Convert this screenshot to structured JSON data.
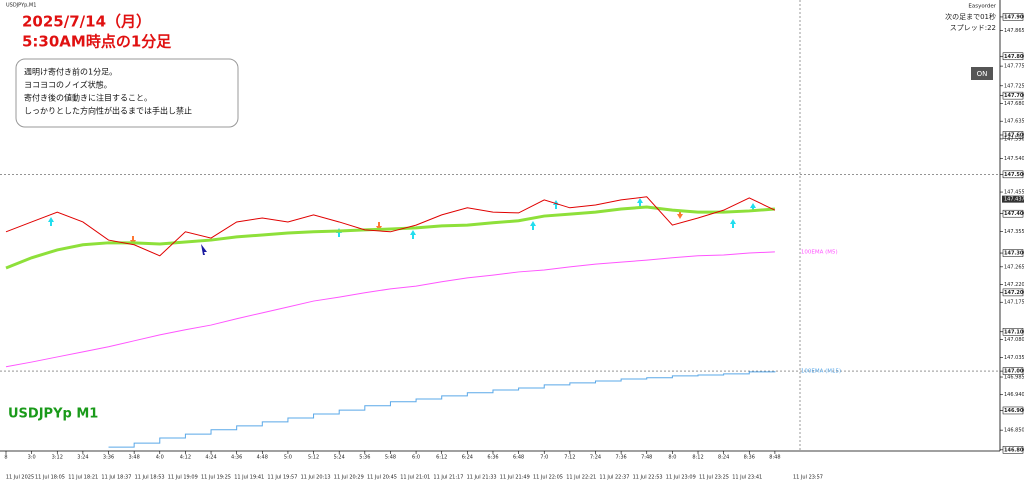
{
  "chart_data": {
    "type": "line",
    "symbol_header": "USDJPYp,M1",
    "title": "2025/7/14（月）",
    "subtitle": "5:30AM時点の1分足",
    "watermark": "USDJPYp M1",
    "note": [
      "週明け寄付き前の1分足。",
      "ヨコヨコのノイズ状態。",
      "寄付き後の値動きに注目すること。",
      "しっかりとした方向性が出るまでは手出し禁止"
    ],
    "panel": {
      "title": "Easyorder",
      "countdown": "次の足まで01秒",
      "spread": "スプレッド:22",
      "button": "ON"
    },
    "current_price": {
      "value": 147.437,
      "label": "147.437"
    },
    "categories": [
      "8",
      "3:0",
      "3:12",
      "3:24",
      "3:36",
      "3:48",
      "4:0",
      "4:12",
      "4:24",
      "4:36",
      "4:48",
      "5:0",
      "5:12",
      "5:24",
      "5:36",
      "5:48",
      "6:0",
      "6:12",
      "6:24",
      "6:36",
      "6:48",
      "7:0",
      "7:12",
      "7:24",
      "7:36",
      "7:48",
      "8:0",
      "8:12",
      "8:24",
      "8:36",
      "8:48"
    ],
    "date_labels": [
      "11 Jul 2025",
      "11 Jul 18:05",
      "11 Jul 18:21",
      "11 Jul 18:37",
      "11 Jul 18:53",
      "11 Jul 19:09",
      "11 Jul 19:25",
      "11 Jul 19:41",
      "11 Jul 19:57",
      "11 Jul 20:13",
      "11 Jul 20:29",
      "11 Jul 20:45",
      "11 Jul 21:01",
      "11 Jul 21:17",
      "11 Jul 21:33",
      "11 Jul 21:49",
      "11 Jul 22:05",
      "11 Jul 22:21",
      "11 Jul 22:37",
      "11 Jul 22:53",
      "11 Jul 23:09",
      "11 Jul 23:25",
      "11 Jul 23:41",
      "11 Jul 23:57"
    ],
    "series": [
      {
        "color": "#e00000",
        "values": [
          147.354,
          147.379,
          147.404,
          147.379,
          147.333,
          147.321,
          147.293,
          147.354,
          147.338,
          147.379,
          147.389,
          147.379,
          147.397,
          147.379,
          147.359,
          147.354,
          147.371,
          147.397,
          147.415,
          147.404,
          147.402,
          147.435,
          147.415,
          147.422,
          147.435,
          147.443,
          147.371,
          147.389,
          147.409,
          147.44,
          147.409
        ]
      },
      {
        "color": "#8ee03a",
        "values": [
          147.262,
          147.288,
          147.308,
          147.321,
          147.326,
          147.326,
          147.323,
          147.328,
          147.333,
          147.341,
          147.346,
          147.351,
          147.354,
          147.356,
          147.359,
          147.361,
          147.364,
          147.369,
          147.371,
          147.377,
          147.382,
          147.394,
          147.399,
          147.404,
          147.412,
          147.417,
          147.409,
          147.404,
          147.404,
          147.407,
          147.412
        ]
      },
      {
        "name": "100EMA (M5)",
        "color": "#ff55ff",
        "values": [
          147.011,
          147.023,
          147.036,
          147.049,
          147.062,
          147.077,
          147.092,
          147.105,
          147.117,
          147.133,
          147.148,
          147.163,
          147.178,
          147.188,
          147.199,
          147.209,
          147.216,
          147.227,
          147.237,
          147.244,
          147.252,
          147.257,
          147.265,
          147.272,
          147.277,
          147.282,
          147.288,
          147.293,
          147.295,
          147.3,
          147.303
        ]
      },
      {
        "name": "100EMA (M15)",
        "color": "#5aa8e8",
        "step": true,
        "values": [
          null,
          null,
          null,
          null,
          146.807,
          146.817,
          146.83,
          146.84,
          146.851,
          146.861,
          146.871,
          146.881,
          146.891,
          146.901,
          146.912,
          146.922,
          146.929,
          146.937,
          146.945,
          146.952,
          146.957,
          146.965,
          146.97,
          146.975,
          146.98,
          146.983,
          146.988,
          146.99,
          146.993,
          146.998,
          147.0
        ]
      }
    ],
    "ylim": [
      146.797,
      147.943
    ],
    "yticks": [
      {
        "value": 147.9,
        "label": "147.900"
      },
      {
        "value": 147.865,
        "label": "147.865"
      },
      {
        "value": 147.8,
        "label": "147.800"
      },
      {
        "value": 147.775,
        "label": "147.775"
      },
      {
        "value": 147.725,
        "label": "147.725"
      },
      {
        "value": 147.7,
        "label": "147.700"
      },
      {
        "value": 147.68,
        "label": "147.680"
      },
      {
        "value": 147.635,
        "label": "147.635"
      },
      {
        "value": 147.6,
        "label": "147.600"
      },
      {
        "value": 147.59,
        "label": "147.590"
      },
      {
        "value": 147.54,
        "label": "147.540"
      },
      {
        "value": 147.5,
        "label": "147.500"
      },
      {
        "value": 147.455,
        "label": "147.455"
      },
      {
        "value": 147.4,
        "label": "147.400"
      },
      {
        "value": 147.355,
        "label": "147.355"
      },
      {
        "value": 147.3,
        "label": "147.300"
      },
      {
        "value": 147.265,
        "label": "147.265"
      },
      {
        "value": 147.22,
        "label": "147.220"
      },
      {
        "value": 147.2,
        "label": "147.200"
      },
      {
        "value": 147.175,
        "label": "147.175"
      },
      {
        "value": 147.1,
        "label": "147.100"
      },
      {
        "value": 147.08,
        "label": "147.080"
      },
      {
        "value": 147.035,
        "label": "147.035"
      },
      {
        "value": 147.0,
        "label": "147.000"
      },
      {
        "value": 146.985,
        "label": "146.985"
      },
      {
        "value": 146.94,
        "label": "146.940"
      },
      {
        "value": 146.9,
        "label": "146.900"
      },
      {
        "value": 146.85,
        "label": "146.850"
      },
      {
        "value": 146.8,
        "label": "146.800"
      }
    ],
    "levels": [
      147.5,
      147.0
    ],
    "grid": false
  }
}
